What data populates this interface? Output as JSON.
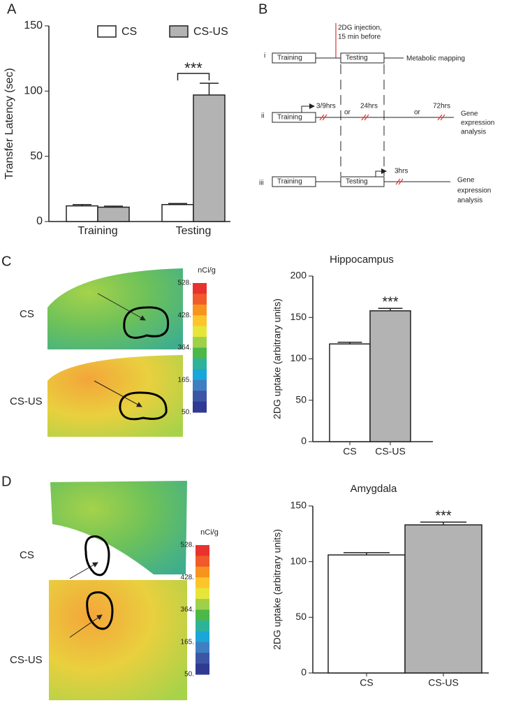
{
  "panel_labels": [
    "A",
    "B",
    "C",
    "D"
  ],
  "chart_data": [
    {
      "type": "bar",
      "ylabel": "Transfer Latency (sec)",
      "categories": [
        "Training",
        "Testing"
      ],
      "series": [
        {
          "name": "CS",
          "color": "#ffffff",
          "values": [
            12,
            13
          ],
          "errors": [
            1,
            0.8
          ]
        },
        {
          "name": "CS-US",
          "color": "#b3b3b3",
          "values": [
            11,
            97
          ],
          "errors": [
            0.8,
            9
          ]
        }
      ],
      "ylim": [
        0,
        150
      ],
      "yticks": [
        0,
        50,
        100,
        150
      ],
      "annotation": "***"
    },
    {
      "type": "bar",
      "title": "Hippocampus",
      "ylabel": "2DG uptake (arbitrary units)",
      "categories": [
        "CS",
        "CS-US"
      ],
      "values": [
        118,
        158
      ],
      "errors": [
        2,
        3
      ],
      "colors": [
        "#ffffff",
        "#b3b3b3"
      ],
      "ylim": [
        0,
        200
      ],
      "yticks": [
        0,
        50,
        100,
        150,
        200
      ],
      "annotation": "***"
    },
    {
      "type": "bar",
      "title": "Amygdala",
      "ylabel": "2DG uptake (arbitrary units)",
      "categories": [
        "CS",
        "CS-US"
      ],
      "values": [
        106,
        133
      ],
      "errors": [
        2,
        2.5
      ],
      "colors": [
        "#ffffff",
        "#b3b3b3"
      ],
      "ylim": [
        0,
        150
      ],
      "yticks": [
        0,
        50,
        100,
        150
      ],
      "annotation": "***"
    }
  ],
  "diagram": {
    "rows": [
      "i",
      "ii",
      "iii"
    ],
    "training": "Training",
    "testing": "Testing",
    "injection": [
      "2DG injection,",
      "15 min before"
    ],
    "mapping": "Metabolic mapping",
    "times": [
      "3/9hrs",
      "24hrs",
      "72hrs",
      "3hrs"
    ],
    "or": "or",
    "gene": [
      "Gene",
      "expression",
      "analysis"
    ]
  },
  "color_scale": {
    "title": "nCi/g",
    "labels": [
      "528.",
      "428.",
      "364.",
      "165.",
      "50."
    ],
    "colors": [
      "#e8322e",
      "#f15a2a",
      "#f7941d",
      "#fbc52b",
      "#e6e63a",
      "#9fd04a",
      "#4cb848",
      "#2eb39a",
      "#1aa6d8",
      "#3f7fc1",
      "#3c56a6",
      "#2f3a92"
    ]
  },
  "image_labels": [
    "CS",
    "CS-US"
  ]
}
